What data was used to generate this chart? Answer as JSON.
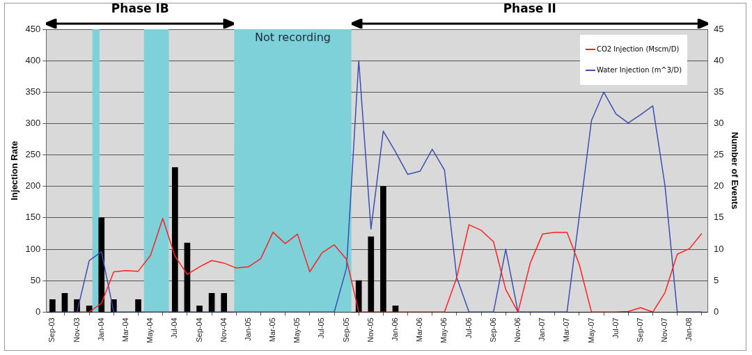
{
  "chart_data": {
    "type": "line",
    "ylabel": "Injection Rate",
    "y2label": "Number of Events",
    "x": [
      "2003-09",
      "2003-10",
      "2003-11",
      "2003-12",
      "2004-01",
      "2004-02",
      "2004-03",
      "2004-04",
      "2004-05",
      "2004-06",
      "2004-07",
      "2004-08",
      "2004-09",
      "2004-10",
      "2004-11",
      "2004-12",
      "2005-01",
      "2005-02",
      "2005-03",
      "2005-04",
      "2005-05",
      "2005-06",
      "2005-07",
      "2005-08",
      "2005-09",
      "2005-10",
      "2005-11",
      "2005-12",
      "2006-01",
      "2006-02",
      "2006-03",
      "2006-04",
      "2006-05",
      "2006-06",
      "2006-07",
      "2006-08",
      "2006-09",
      "2006-10",
      "2006-11",
      "2006-12",
      "2007-01",
      "2007-02",
      "2007-03",
      "2007-04",
      "2007-05",
      "2007-06",
      "2007-07",
      "2007-08",
      "2007-09",
      "2007-10",
      "2007-11",
      "2007-12",
      "2008-01",
      "2008-02"
    ],
    "xlim": [
      "2003-08-16",
      "2008-02-16"
    ],
    "xticks": [
      {
        "value": "2003-09",
        "label": "Sep-03"
      },
      {
        "value": "2003-11",
        "label": "Nov-03"
      },
      {
        "value": "2004-01",
        "label": "Jan-04"
      },
      {
        "value": "2004-03",
        "label": "Mar-04"
      },
      {
        "value": "2004-05",
        "label": "May-04"
      },
      {
        "value": "2004-07",
        "label": "Jul-04"
      },
      {
        "value": "2004-09",
        "label": "Sep-04"
      },
      {
        "value": "2004-11",
        "label": "Nov-04"
      },
      {
        "value": "2005-01",
        "label": "Jan-05"
      },
      {
        "value": "2005-03",
        "label": "Mar-05"
      },
      {
        "value": "2005-05",
        "label": "May-05"
      },
      {
        "value": "2005-07",
        "label": "Jul-05"
      },
      {
        "value": "2005-09",
        "label": "Sep-05"
      },
      {
        "value": "2005-11",
        "label": "Nov-05"
      },
      {
        "value": "2006-01",
        "label": "Jan-06"
      },
      {
        "value": "2006-03",
        "label": "Mar-06"
      },
      {
        "value": "2006-05",
        "label": "May-06"
      },
      {
        "value": "2006-07",
        "label": "Jul-06"
      },
      {
        "value": "2006-09",
        "label": "Sep-06"
      },
      {
        "value": "2006-11",
        "label": "Nov-06"
      },
      {
        "value": "2007-01",
        "label": "Jan-07"
      },
      {
        "value": "2007-03",
        "label": "Mar-07"
      },
      {
        "value": "2007-05",
        "label": "May-07"
      },
      {
        "value": "2007-07",
        "label": "Jul-07"
      },
      {
        "value": "2007-09",
        "label": "Sep-07"
      },
      {
        "value": "2007-11",
        "label": "Nov-07"
      },
      {
        "value": "2008-01",
        "label": "Jan-08"
      }
    ],
    "ylim": [
      0,
      450
    ],
    "yticks": [
      0,
      50,
      100,
      150,
      200,
      250,
      300,
      350,
      400,
      450
    ],
    "y2lim": [
      0,
      45
    ],
    "y2ticks": [
      0,
      5,
      10,
      15,
      20,
      25,
      30,
      35,
      40,
      45
    ],
    "grid": "y",
    "legend": "top right",
    "series": [
      {
        "type": "bar",
        "axis": "y2",
        "color": "#000000",
        "values": [
          2,
          3,
          2,
          1,
          15,
          2,
          0,
          2,
          0,
          0,
          23,
          11,
          1,
          3,
          3,
          null,
          null,
          null,
          null,
          null,
          null,
          null,
          null,
          null,
          null,
          5,
          12,
          20,
          1,
          0,
          0,
          0,
          0,
          0,
          0,
          0,
          0,
          0,
          0,
          0,
          0,
          0,
          0,
          0,
          0,
          0,
          0,
          0,
          0,
          0,
          0,
          0,
          0,
          0
        ]
      },
      {
        "name": "CO2 Injection (Mscm/D)",
        "color": "#ff2020",
        "values": [
          null,
          null,
          0,
          0,
          14,
          64,
          66,
          65,
          90,
          149,
          89,
          60,
          72,
          82,
          78,
          70,
          72,
          85,
          127,
          109,
          124,
          64,
          94,
          107,
          84,
          0,
          0,
          0,
          0,
          0,
          0,
          0,
          0,
          55,
          139,
          130,
          112,
          36,
          0,
          78,
          124,
          127,
          127,
          76,
          0,
          0,
          0,
          1,
          7,
          0,
          31,
          92,
          101,
          125
        ]
      },
      {
        "name": "Water Injection (m^3/D)",
        "color": "#3a4fb0",
        "values": [
          0,
          0,
          0,
          82,
          96,
          0,
          0,
          0,
          0,
          0,
          0,
          0,
          0,
          0,
          0,
          0,
          0,
          0,
          0,
          0,
          0,
          0,
          0,
          0,
          70,
          400,
          132,
          288,
          255,
          219,
          224,
          259,
          226,
          55,
          0,
          0,
          0,
          100,
          0,
          0,
          0,
          0,
          0,
          152,
          305,
          350,
          315,
          301,
          314,
          328,
          201,
          0,
          0,
          0
        ]
      }
    ],
    "bands": [
      {
        "axis": "x",
        "from": "2003-12-09",
        "to": "2003-12-27",
        "color": "#7fd1d9"
      },
      {
        "axis": "x",
        "from": "2004-04-15",
        "to": "2004-06-16",
        "color": "#7fd1d9"
      },
      {
        "axis": "x",
        "from": "2004-11-26",
        "to": "2005-09-13",
        "color": "#7fd1d9",
        "label": "Not recording"
      }
    ],
    "annotations": [
      "Phase IB",
      "Phase II"
    ]
  }
}
